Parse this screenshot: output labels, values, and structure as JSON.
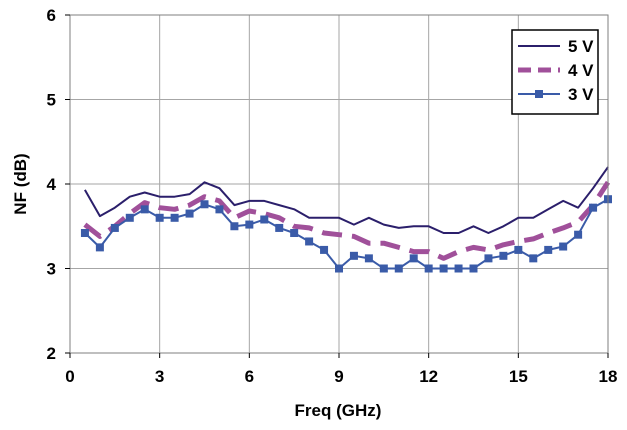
{
  "chart_data": {
    "type": "line",
    "title": "",
    "xlabel": "Freq (GHz)",
    "ylabel": "NF (dB)",
    "xlim": [
      0,
      18
    ],
    "ylim": [
      2,
      6
    ],
    "x_ticks": [
      0,
      3,
      6,
      9,
      12,
      15,
      18
    ],
    "y_ticks": [
      2,
      3,
      4,
      5,
      6
    ],
    "grid": true,
    "legend_position": "top-right",
    "series": [
      {
        "name": "5 V",
        "color": "#2b1f6b",
        "style": "solid",
        "x": [
          0.5,
          1.0,
          1.5,
          2.0,
          2.5,
          3.0,
          3.5,
          4.0,
          4.5,
          5.0,
          5.5,
          6.0,
          6.5,
          7.0,
          7.5,
          8.0,
          8.5,
          9.0,
          9.5,
          10.0,
          10.5,
          11.0,
          11.5,
          12.0,
          12.5,
          13.0,
          13.5,
          14.0,
          14.5,
          15.0,
          15.5,
          16.0,
          16.5,
          17.0,
          17.5,
          18.0
        ],
        "y": [
          3.93,
          3.62,
          3.72,
          3.85,
          3.9,
          3.85,
          3.85,
          3.88,
          4.02,
          3.95,
          3.75,
          3.8,
          3.8,
          3.75,
          3.7,
          3.6,
          3.6,
          3.6,
          3.52,
          3.6,
          3.52,
          3.48,
          3.5,
          3.5,
          3.42,
          3.42,
          3.5,
          3.42,
          3.5,
          3.6,
          3.6,
          3.7,
          3.8,
          3.72,
          3.95,
          4.2
        ]
      },
      {
        "name": "4 V",
        "color": "#a0509a",
        "style": "dashed",
        "x": [
          0.5,
          1.0,
          1.5,
          2.0,
          2.5,
          3.0,
          3.5,
          4.0,
          4.5,
          5.0,
          5.5,
          6.0,
          6.5,
          7.0,
          7.5,
          8.0,
          8.5,
          9.0,
          9.5,
          10.0,
          10.5,
          11.0,
          11.5,
          12.0,
          12.5,
          13.0,
          13.5,
          14.0,
          14.5,
          15.0,
          15.5,
          16.0,
          16.5,
          17.0,
          17.5,
          18.0
        ],
        "y": [
          3.52,
          3.38,
          3.5,
          3.65,
          3.78,
          3.72,
          3.7,
          3.75,
          3.85,
          3.8,
          3.6,
          3.68,
          3.65,
          3.6,
          3.5,
          3.48,
          3.42,
          3.4,
          3.38,
          3.3,
          3.3,
          3.25,
          3.2,
          3.2,
          3.12,
          3.2,
          3.25,
          3.22,
          3.28,
          3.32,
          3.35,
          3.42,
          3.48,
          3.55,
          3.75,
          4.02
        ]
      },
      {
        "name": "3 V",
        "color": "#3a5ba8",
        "style": "solid-square-markers",
        "x": [
          0.5,
          1.0,
          1.5,
          2.0,
          2.5,
          3.0,
          3.5,
          4.0,
          4.5,
          5.0,
          5.5,
          6.0,
          6.5,
          7.0,
          7.5,
          8.0,
          8.5,
          9.0,
          9.5,
          10.0,
          10.5,
          11.0,
          11.5,
          12.0,
          12.5,
          13.0,
          13.5,
          14.0,
          14.5,
          15.0,
          15.5,
          16.0,
          16.5,
          17.0,
          17.5,
          18.0
        ],
        "y": [
          3.42,
          3.25,
          3.48,
          3.6,
          3.7,
          3.6,
          3.6,
          3.65,
          3.76,
          3.7,
          3.5,
          3.52,
          3.58,
          3.48,
          3.42,
          3.32,
          3.22,
          3.0,
          3.15,
          3.12,
          3.0,
          3.0,
          3.12,
          3.0,
          3.0,
          3.0,
          3.0,
          3.12,
          3.15,
          3.22,
          3.12,
          3.22,
          3.26,
          3.4,
          3.72,
          3.82
        ]
      }
    ]
  }
}
